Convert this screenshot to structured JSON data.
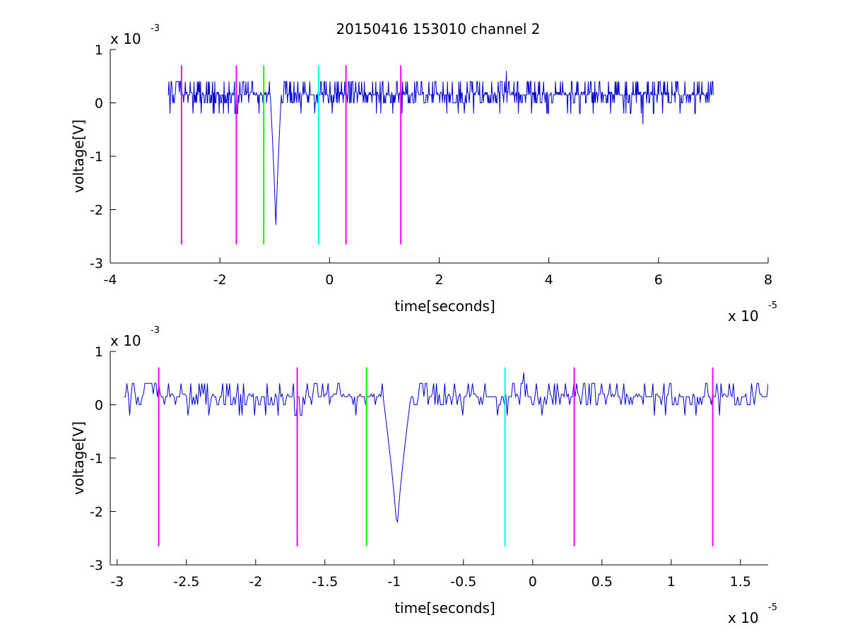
{
  "title": "20150416 153010 channel 2",
  "chart_data": [
    {
      "type": "line",
      "title": "20150416 153010 channel 2",
      "xlabel": "time[seconds]",
      "ylabel": "voltage[V]",
      "x_multiplier_label": "x 10",
      "x_multiplier_exp": "-5",
      "y_multiplier_label": "x 10",
      "y_multiplier_exp": "-3",
      "xlim": [
        -4,
        8
      ],
      "ylim": [
        -3,
        1
      ],
      "xticks": [
        -4,
        -2,
        0,
        2,
        4,
        6,
        8
      ],
      "xtick_labels": [
        "-4",
        "-2",
        "0",
        "2",
        "4",
        "6",
        "8"
      ],
      "yticks": [
        -3,
        -2,
        -1,
        0,
        1
      ],
      "ytick_labels": [
        "-3",
        "-2",
        "-1",
        "0",
        "1"
      ],
      "grid": false,
      "signal": {
        "color": "#0000cc",
        "x_start": -2.95,
        "x_end": 7.0,
        "baseline": 0.15,
        "spike_x": -0.98,
        "spike_min": -2.4,
        "samples": 1000,
        "noise_levels": [
          0.4,
          0.2,
          0.0,
          -0.2
        ],
        "extreme_max": 0.6,
        "extreme_min": -0.4
      },
      "markers": [
        {
          "x": -2.7,
          "color": "#ff00ff",
          "y_top": 0.7,
          "y_bottom": -2.65
        },
        {
          "x": -1.7,
          "color": "#ff00ff",
          "y_top": 0.7,
          "y_bottom": -2.65
        },
        {
          "x": -1.2,
          "color": "#00ff00",
          "y_top": 0.7,
          "y_bottom": -2.65
        },
        {
          "x": -0.2,
          "color": "#00ffff",
          "y_top": 0.7,
          "y_bottom": -2.65
        },
        {
          "x": 0.3,
          "color": "#ff00ff",
          "y_top": 0.7,
          "y_bottom": -2.65
        },
        {
          "x": 1.3,
          "color": "#ff00ff",
          "y_top": 0.7,
          "y_bottom": -2.65
        }
      ]
    },
    {
      "type": "line",
      "title": "",
      "xlabel": "time[seconds]",
      "ylabel": "voltage[V]",
      "x_multiplier_label": "x 10",
      "x_multiplier_exp": "-5",
      "y_multiplier_label": "x 10",
      "y_multiplier_exp": "-3",
      "xlim": [
        -3.05,
        1.7
      ],
      "ylim": [
        -3,
        1
      ],
      "xticks": [
        -3,
        -2.5,
        -2,
        -1.5,
        -1,
        -0.5,
        0,
        0.5,
        1,
        1.5
      ],
      "xtick_labels": [
        "-3",
        "-2.5",
        "-2",
        "-1.5",
        "-1",
        "-0.5",
        "0",
        "0.5",
        "1",
        "1.5"
      ],
      "yticks": [
        -3,
        -2,
        -1,
        0,
        1
      ],
      "ytick_labels": [
        "-3",
        "-2",
        "-1",
        "0",
        "1"
      ],
      "grid": false,
      "signal": {
        "color": "#0000cc",
        "x_start": -2.95,
        "x_end": 1.7,
        "baseline": 0.15,
        "spike_x": -0.98,
        "spike_min": -2.4,
        "samples": 465,
        "noise_levels": [
          0.4,
          0.2,
          0.0,
          -0.2
        ],
        "extreme_max": 0.6,
        "extreme_min": -0.2
      },
      "markers": [
        {
          "x": -2.7,
          "color": "#ff00ff",
          "y_top": 0.7,
          "y_bottom": -2.65
        },
        {
          "x": -1.7,
          "color": "#ff00ff",
          "y_top": 0.7,
          "y_bottom": -2.65
        },
        {
          "x": -1.2,
          "color": "#00ff00",
          "y_top": 0.7,
          "y_bottom": -2.65
        },
        {
          "x": -0.2,
          "color": "#00ffff",
          "y_top": 0.7,
          "y_bottom": -2.65
        },
        {
          "x": 0.3,
          "color": "#ff00ff",
          "y_top": 0.7,
          "y_bottom": -2.65
        },
        {
          "x": 1.3,
          "color": "#ff00ff",
          "y_top": 0.7,
          "y_bottom": -2.65
        }
      ]
    }
  ]
}
